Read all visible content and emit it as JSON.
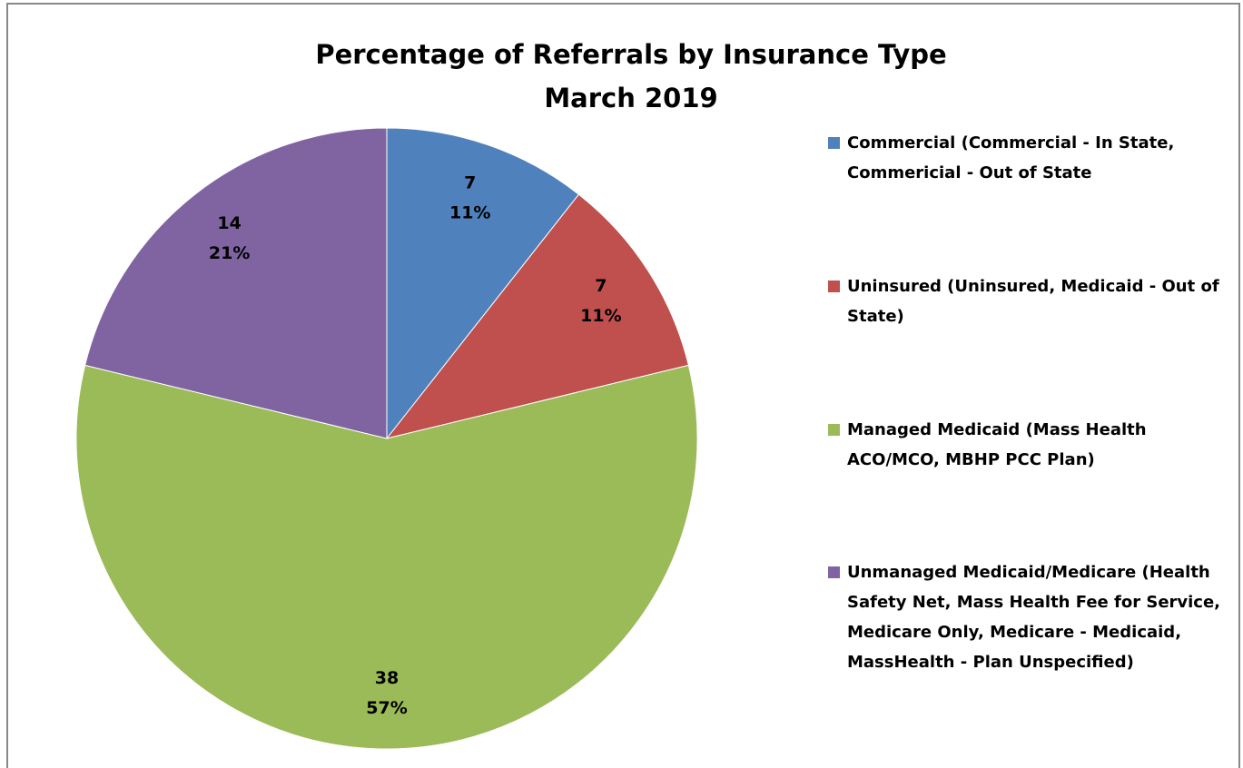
{
  "chart_data": {
    "type": "pie",
    "title": "Percentage of Referrals by Insurance Type",
    "subtitle": "March 2019",
    "categories": [
      "Commercial (Commercial - In State, Commericial - Out of State",
      "Uninsured (Uninsured, Medicaid - Out of State)",
      "Managed Medicaid (Mass Health ACO/MCO, MBHP PCC Plan)",
      "Unmanaged Medicaid/Medicare (Health Safety Net, Mass Health Fee for Service, Medicare Only, Medicare - Medicaid, MassHealth - Plan Unspecified)"
    ],
    "values": [
      7,
      7,
      38,
      14
    ],
    "percent_labels": [
      "11%",
      "11%",
      "57%",
      "21%"
    ],
    "colors": [
      "#4f81bd",
      "#c0504d",
      "#9bbb59",
      "#8064a2"
    ],
    "legend": "right"
  }
}
